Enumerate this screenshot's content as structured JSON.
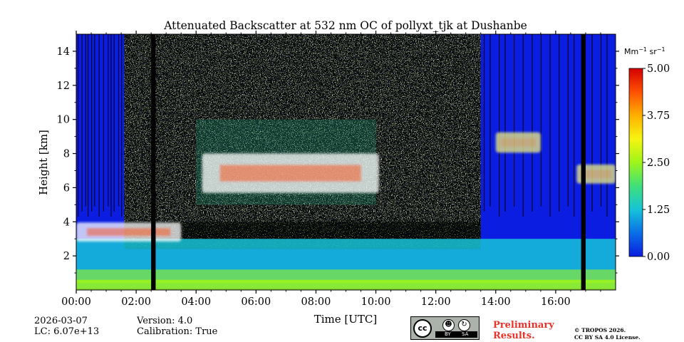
{
  "chart_data": {
    "type": "heatmap",
    "title": "Attenuated Backscatter at 532 nm OC of pollyxt_tjk at Dushanbe",
    "xlabel": "Time [UTC]",
    "ylabel": "Height [km]",
    "xlim_hours": [
      0,
      18
    ],
    "ylim_km": [
      0,
      15
    ],
    "x_ticks": [
      {
        "value": 0,
        "label": "00:00"
      },
      {
        "value": 2,
        "label": "02:00"
      },
      {
        "value": 4,
        "label": "04:00"
      },
      {
        "value": 6,
        "label": "06:00"
      },
      {
        "value": 8,
        "label": "08:00"
      },
      {
        "value": 10,
        "label": "10:00"
      },
      {
        "value": 12,
        "label": "12:00"
      },
      {
        "value": 14,
        "label": "14:00"
      },
      {
        "value": 16,
        "label": "16:00"
      }
    ],
    "y_ticks": [
      {
        "value": 2,
        "label": "2"
      },
      {
        "value": 4,
        "label": "4"
      },
      {
        "value": 6,
        "label": "6"
      },
      {
        "value": 8,
        "label": "8"
      },
      {
        "value": 10,
        "label": "10"
      },
      {
        "value": 12,
        "label": "12"
      },
      {
        "value": 14,
        "label": "14"
      }
    ],
    "colorbar": {
      "unit": "Mm",
      "unit_sup1": "−1",
      "unit_mid": " sr",
      "unit_sup2": "−1",
      "min": 0,
      "max": 5,
      "ticks": [
        {
          "value": 0,
          "label": "0.00"
        },
        {
          "value": 1.25,
          "label": "1.25"
        },
        {
          "value": 2.5,
          "label": "2.50"
        },
        {
          "value": 3.75,
          "label": "3.75"
        },
        {
          "value": 5,
          "label": "5.00"
        }
      ],
      "colors": [
        "#0a1de0",
        "#0a6fe8",
        "#16c3d8",
        "#3fe07a",
        "#9ef51a",
        "#f5f510",
        "#ffb000",
        "#ff5000",
        "#d40000"
      ]
    },
    "data_gaps_hours": [
      [
        2.5,
        2.65
      ],
      [
        16.85,
        17.0
      ]
    ],
    "features": [
      {
        "name": "boundary layer",
        "t_start": 0,
        "t_end": 18,
        "base_km": 0.1,
        "top_km": 3.0,
        "value": 1.5
      },
      {
        "name": "surface layer",
        "t_start": 0,
        "t_end": 18,
        "base_km": 0.0,
        "top_km": 0.6,
        "value": 2.6
      },
      {
        "name": "dense low cloud",
        "t_start": 0,
        "t_end": 3.5,
        "base_km": 2.6,
        "top_km": 4.2,
        "value": 5.0
      },
      {
        "name": "cirrus cloud",
        "t_start": 4.2,
        "t_end": 10.1,
        "base_km": 5.2,
        "top_km": 8.5,
        "value": 5.0
      },
      {
        "name": "thin cloud",
        "t_start": 14.0,
        "t_end": 15.5,
        "base_km": 7.8,
        "top_km": 9.5,
        "value": 3.5
      },
      {
        "name": "thin cloud",
        "t_start": 16.7,
        "t_end": 18.0,
        "base_km": 6.0,
        "top_km": 7.6,
        "value": 3.5
      }
    ]
  },
  "footer": {
    "date": "2026-03-07",
    "lc": "LC: 6.07e+13",
    "version": "Version: 4.0",
    "calibration": "Calibration: True",
    "preliminary_line1": "Preliminary",
    "preliminary_line2": "Results.",
    "copyright_line1": "© TROPOS 2026.",
    "copyright_line2": "CC BY SA 4.0 License.",
    "license_badge": {
      "cc": "cc",
      "by": "BY",
      "sa": "SA"
    }
  },
  "colors": {
    "preliminary_text": "#e8332a",
    "background": "#ffffff"
  }
}
